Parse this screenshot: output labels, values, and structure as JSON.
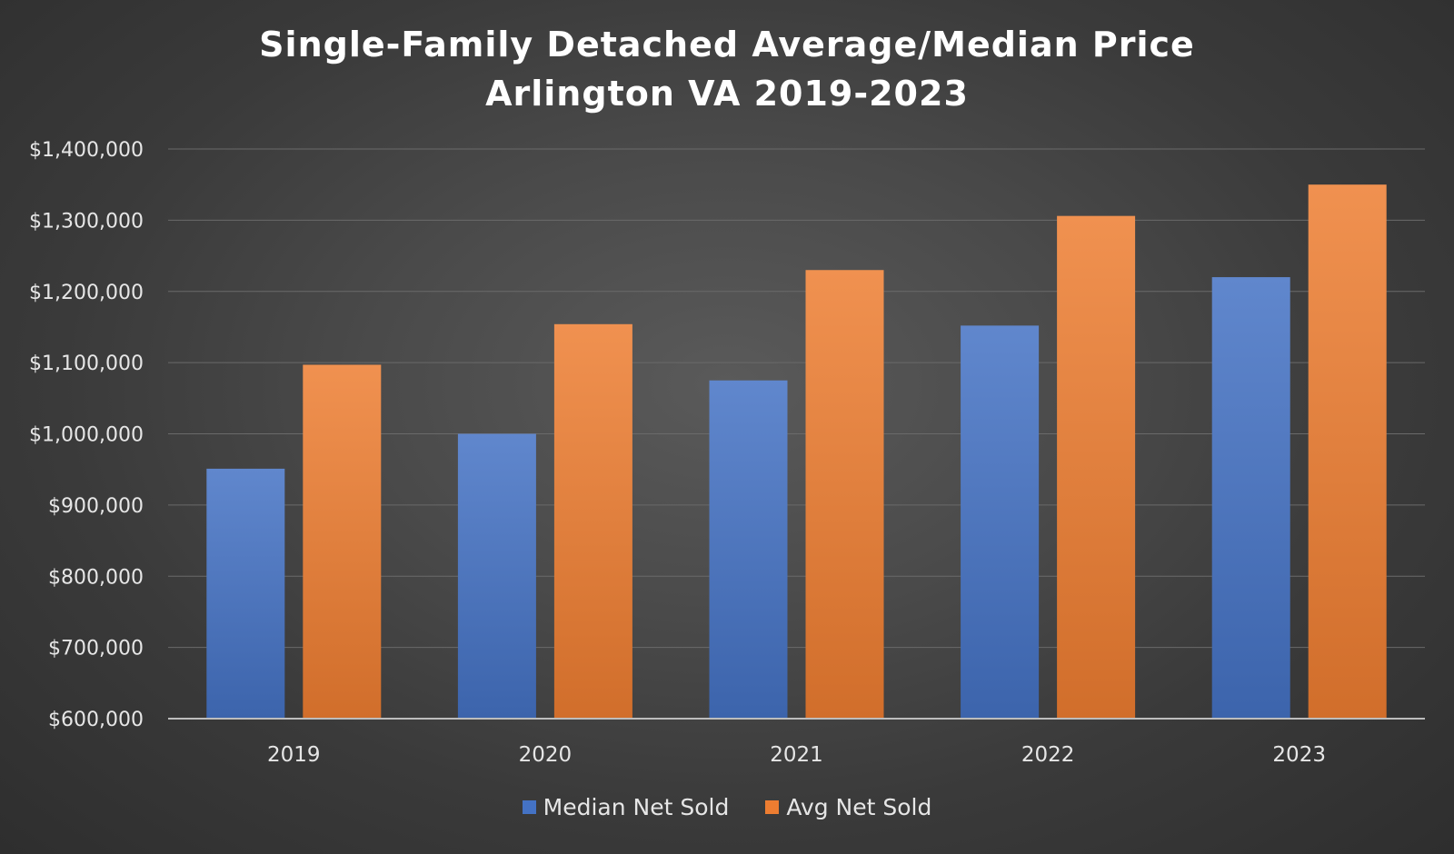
{
  "chart_data": {
    "type": "bar",
    "title": "Single-Family Detached Average/Median Price",
    "subtitle": "Arlington VA 2019-2023",
    "categories": [
      "2019",
      "2020",
      "2021",
      "2022",
      "2023"
    ],
    "series": [
      {
        "name": "Median Net Sold",
        "values": [
          951000,
          1000000,
          1075000,
          1152000,
          1220000
        ],
        "color": "#4472c4"
      },
      {
        "name": "Avg Net Sold",
        "values": [
          1097000,
          1154000,
          1230000,
          1306000,
          1350000
        ],
        "color": "#ed7d31"
      }
    ],
    "ylim": [
      600000,
      1400000
    ],
    "yticks": [
      "$600,000",
      "$700,000",
      "$800,000",
      "$900,000",
      "$1,000,000",
      "$1,100,000",
      "$1,200,000",
      "$1,300,000",
      "$1,400,000"
    ],
    "ytick_values": [
      600000,
      700000,
      800000,
      900000,
      1000000,
      1100000,
      1200000,
      1300000,
      1400000
    ],
    "grid": true,
    "legend_position": "bottom"
  }
}
